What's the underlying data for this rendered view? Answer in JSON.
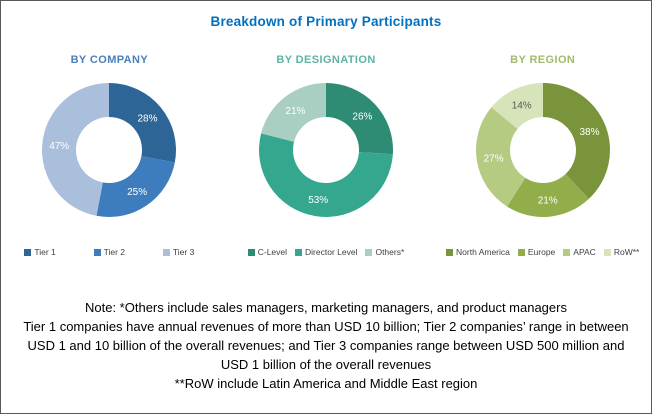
{
  "title": "Breakdown of Primary Participants",
  "title_color": "#0070C0",
  "chart_data": [
    {
      "type": "pie",
      "subtype": "donut",
      "title": "BY COMPANY",
      "title_color": "#4A7EBB",
      "labels": [
        "Tier 1",
        "Tier 2",
        "Tier 3"
      ],
      "values": [
        28,
        25,
        47
      ],
      "value_labels": [
        "28%",
        "25%",
        "47%"
      ],
      "colors": [
        "#2D6596",
        "#3D7DBD",
        "#A9BFDC"
      ],
      "value_label_colors": [
        "#FFFFFF",
        "#FFFFFF",
        "#FFFFFF"
      ],
      "legend_position": "bottom",
      "start_angle_deg": 0,
      "direction": "clockwise"
    },
    {
      "type": "pie",
      "subtype": "donut",
      "title": "BY DESIGNATION",
      "title_color": "#5FB3A4",
      "labels": [
        "C-Level",
        "Director Level",
        "Others*"
      ],
      "values": [
        26,
        53,
        21
      ],
      "value_labels": [
        "26%",
        "53%",
        "21%"
      ],
      "colors": [
        "#2E8C74",
        "#36A78F",
        "#A9CFC2"
      ],
      "value_label_colors": [
        "#FFFFFF",
        "#FFFFFF",
        "#FFFFFF"
      ],
      "legend_position": "bottom",
      "start_angle_deg": 0,
      "direction": "clockwise"
    },
    {
      "type": "pie",
      "subtype": "donut",
      "title": "BY REGION",
      "title_color": "#A4B96C",
      "labels": [
        "North America",
        "Europe",
        "APAC",
        "RoW**"
      ],
      "values": [
        38,
        21,
        27,
        14
      ],
      "value_labels": [
        "38%",
        "21%",
        "27%",
        "14%"
      ],
      "colors": [
        "#7A943C",
        "#92AE4A",
        "#B4CB81",
        "#D7E3B8"
      ],
      "value_label_colors": [
        "#FFFFFF",
        "#FFFFFF",
        "#FFFFFF",
        "#595959"
      ],
      "legend_position": "bottom",
      "start_angle_deg": 0,
      "direction": "clockwise"
    }
  ],
  "notes": {
    "lines": [
      "Note: *Others include sales managers, marketing managers, and product managers",
      "Tier 1 companies have annual revenues of more than USD 10 billion; Tier 2 companies’ range in between",
      "USD 1 and 10 billion of the overall revenues; and Tier 3 companies range between USD 500 million and",
      "USD 1 billion of the overall revenues",
      "**RoW  include Latin America and Middle East region"
    ]
  }
}
